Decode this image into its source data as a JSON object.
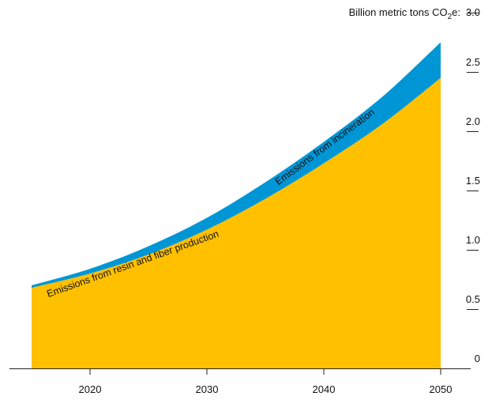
{
  "chart_data": {
    "type": "area",
    "stacked": true,
    "unit_label": {
      "pre": "Billion metric tons CO",
      "sub": "2",
      "post": "e:"
    },
    "x": [
      2015,
      2020,
      2025,
      2030,
      2035,
      2040,
      2045,
      2050
    ],
    "xticks": [
      "2020",
      "2030",
      "2040",
      "2050"
    ],
    "xlim": [
      2015,
      2050
    ],
    "ylim": [
      0,
      3.0
    ],
    "yticks": [
      "0",
      "0.5",
      "1.0",
      "1.5",
      "2.0",
      "2.5",
      "3.0"
    ],
    "grid": false,
    "series": [
      {
        "name": "Emissions from resin and fiber production",
        "values": [
          0.68,
          0.8,
          0.96,
          1.17,
          1.43,
          1.73,
          2.06,
          2.45
        ],
        "color": "#FFC000"
      },
      {
        "name": "Emissions from incineration",
        "values": [
          0.02,
          0.04,
          0.07,
          0.1,
          0.14,
          0.18,
          0.23,
          0.3
        ],
        "color": "#0096D6"
      }
    ]
  }
}
